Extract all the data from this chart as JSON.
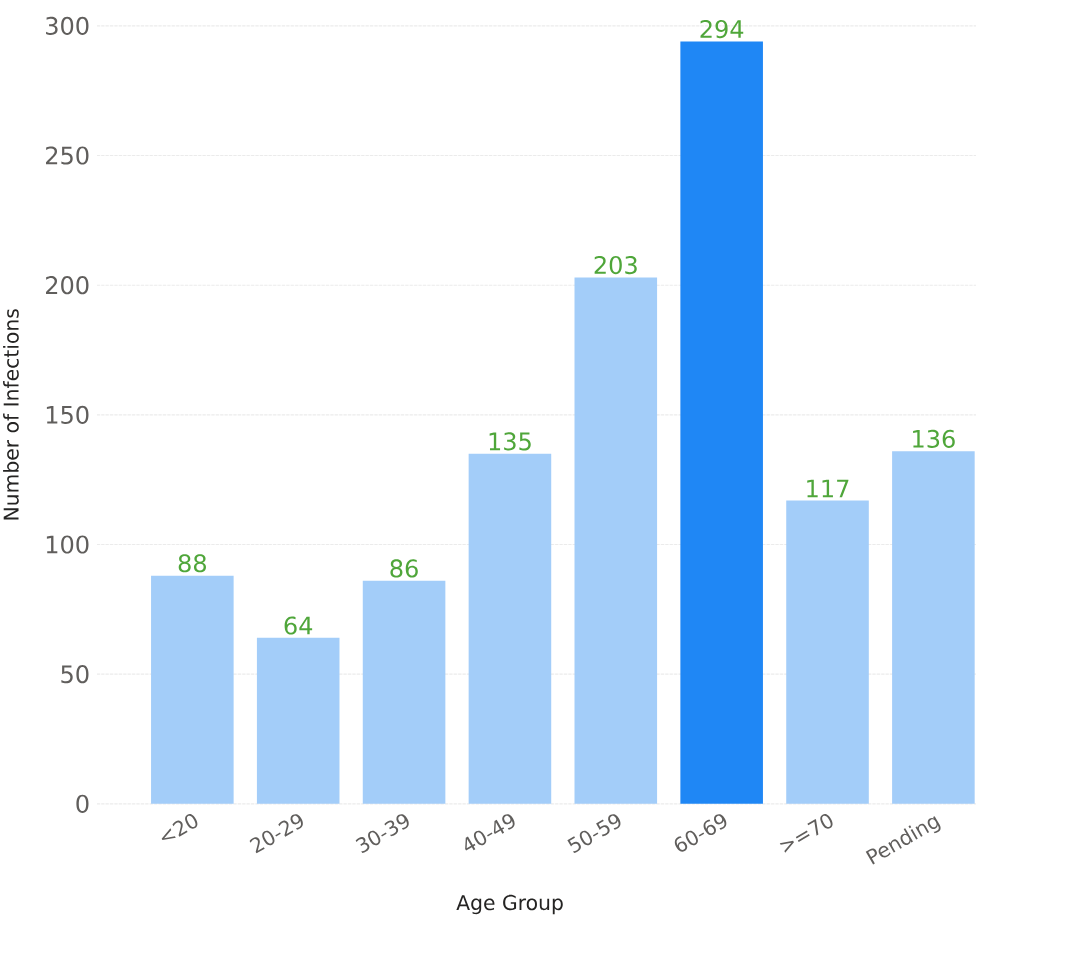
{
  "chart_data": {
    "type": "bar",
    "xlabel": "Age Group",
    "ylabel": "Number of Infections",
    "categories": [
      "<20",
      "20-29",
      "30-39",
      "40-49",
      "50-59",
      "60-69",
      ">=70",
      "Pending"
    ],
    "values": [
      88,
      64,
      86,
      135,
      203,
      294,
      117,
      136
    ],
    "colors": [
      "#a3cdf9",
      "#a3cdf9",
      "#a3cdf9",
      "#a3cdf9",
      "#a3cdf9",
      "#1f87f5",
      "#a3cdf9",
      "#a3cdf9"
    ],
    "ylim": [
      0,
      300
    ],
    "yticks": [
      0,
      50,
      100,
      150,
      200,
      250,
      300
    ],
    "grid": "y",
    "data_labels": true
  }
}
